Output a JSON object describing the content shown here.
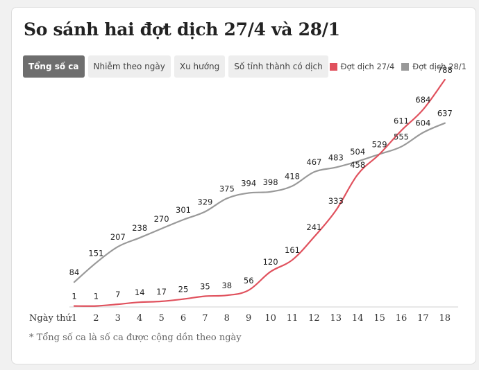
{
  "title": "So sánh hai đợt dịch 27/4 và 28/1",
  "tabs": [
    {
      "label": "Tổng số ca",
      "active": true
    },
    {
      "label": "Nhiễm theo ngày",
      "active": false
    },
    {
      "label": "Xu hướng",
      "active": false
    },
    {
      "label": "Số tỉnh thành có dịch",
      "active": false
    }
  ],
  "legend": [
    {
      "label": "Đợt dịch 27/4",
      "color": "#e0515d"
    },
    {
      "label": "Đợt dịch 28/1",
      "color": "#999999"
    }
  ],
  "footnote": "* Tổng số ca là số ca được cộng dồn theo ngày",
  "chart_data": {
    "type": "line",
    "xlabel": "Ngày thứ",
    "ylabel": "",
    "x": [
      1,
      2,
      3,
      4,
      5,
      6,
      7,
      8,
      9,
      10,
      11,
      12,
      13,
      14,
      15,
      16,
      17,
      18
    ],
    "series": [
      {
        "name": "Đợt dịch 27/4",
        "color": "#e0515d",
        "values": [
          1,
          1,
          7,
          14,
          17,
          25,
          35,
          38,
          56,
          120,
          161,
          241,
          333,
          458,
          529,
          611,
          684,
          788
        ]
      },
      {
        "name": "Đợt dịch 28/1",
        "color": "#999999",
        "values": [
          84,
          151,
          207,
          238,
          270,
          301,
          329,
          375,
          394,
          398,
          418,
          467,
          483,
          504,
          529,
          555,
          604,
          637
        ]
      }
    ],
    "ylim": [
      0,
      788
    ],
    "grid": false,
    "legend_position": "top-right"
  }
}
